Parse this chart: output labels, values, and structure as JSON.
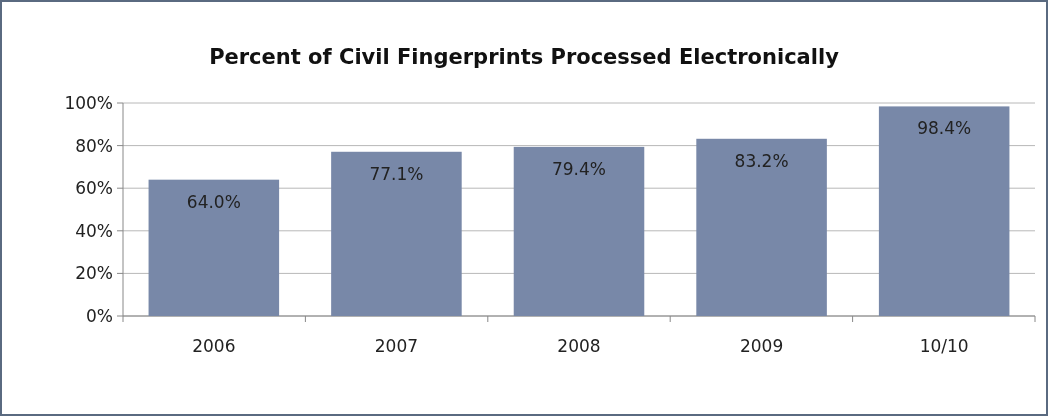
{
  "chart_data": {
    "type": "bar",
    "title": "Percent of Civil Fingerprints Processed Electronically",
    "categories": [
      "2006",
      "2007",
      "2008",
      "2009",
      "10/10"
    ],
    "values": [
      64.0,
      77.1,
      79.4,
      83.2,
      98.4
    ],
    "value_labels": [
      "64.0%",
      "77.1%",
      "79.4%",
      "83.2%",
      "98.4%"
    ],
    "color": "#7888a8",
    "ylim": [
      0,
      100
    ],
    "yticks": [
      {
        "value": 0,
        "label": "0%"
      },
      {
        "value": 20,
        "label": "20%"
      },
      {
        "value": 40,
        "label": "40%"
      },
      {
        "value": 60,
        "label": "60%"
      },
      {
        "value": 80,
        "label": "80%"
      },
      {
        "value": 100,
        "label": "100%"
      }
    ],
    "grid": "y"
  }
}
